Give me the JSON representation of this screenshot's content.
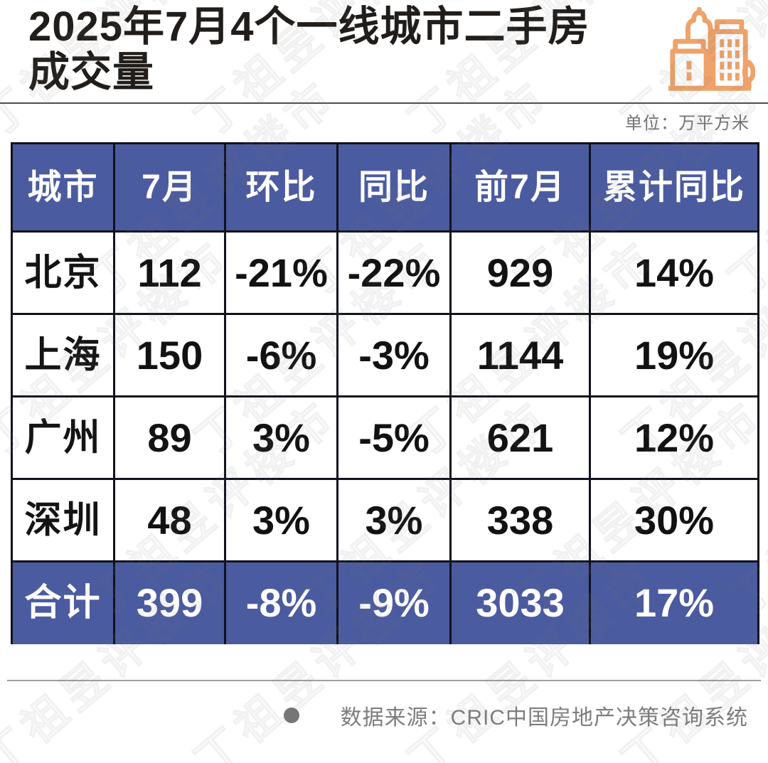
{
  "header": {
    "title_line1": "2025年7月4个一线城市二手房",
    "title_line2": "成交量"
  },
  "unit_label": "单位：万平方米",
  "footer": {
    "source_label": "数据来源：CRIC中国房地产决策咨询系统"
  },
  "icon": {
    "name": "city-buildings",
    "color": "#EFA269"
  },
  "colors": {
    "header_blue": "#4b5ba0",
    "border_dark": "#10131d",
    "title_dark": "#211d1a",
    "gray_text": "#7d7d7d",
    "orange": "#EFA269"
  },
  "watermark_text": "丁祖昱评楼市",
  "chart_data": {
    "type": "table",
    "title": "2025年7月4个一线城市二手房成交量",
    "unit": "万平方米",
    "columns": [
      "城市",
      "7月",
      "环比",
      "同比",
      "前7月",
      "累计同比"
    ],
    "rows": [
      [
        "北京",
        "112",
        "-21%",
        "-22%",
        "929",
        "14%"
      ],
      [
        "上海",
        "150",
        "-6%",
        "-3%",
        "1144",
        "19%"
      ],
      [
        "广州",
        "89",
        "3%",
        "-5%",
        "621",
        "12%"
      ],
      [
        "深圳",
        "48",
        "3%",
        "3%",
        "338",
        "30%"
      ]
    ],
    "total_row": [
      "合计",
      "399",
      "-8%",
      "-9%",
      "3033",
      "17%"
    ],
    "source": "CRIC中国房地产决策咨询系统"
  }
}
